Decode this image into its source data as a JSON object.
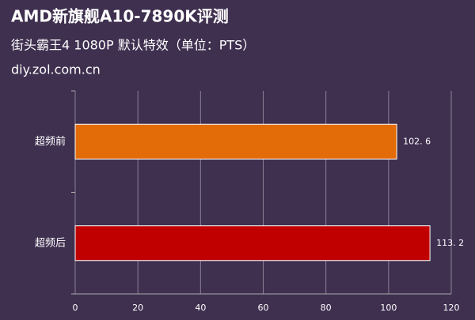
{
  "chart_data": {
    "type": "bar",
    "orientation": "horizontal",
    "title": "AMD新旗舰A10-7890K评测",
    "subtitle": "街头霸王4 1080P 默认特效（单位：PTS）",
    "source": "diy.zol.com.cn",
    "categories": [
      "超频前",
      "超频后"
    ],
    "values": [
      102.6,
      113.2
    ],
    "value_labels": [
      "102. 6",
      "113. 2"
    ],
    "colors": [
      "#e36c09",
      "#c00000"
    ],
    "xlim": [
      0,
      120
    ],
    "xticks": [
      0,
      20,
      40,
      60,
      80,
      100,
      120
    ],
    "grid": true
  }
}
